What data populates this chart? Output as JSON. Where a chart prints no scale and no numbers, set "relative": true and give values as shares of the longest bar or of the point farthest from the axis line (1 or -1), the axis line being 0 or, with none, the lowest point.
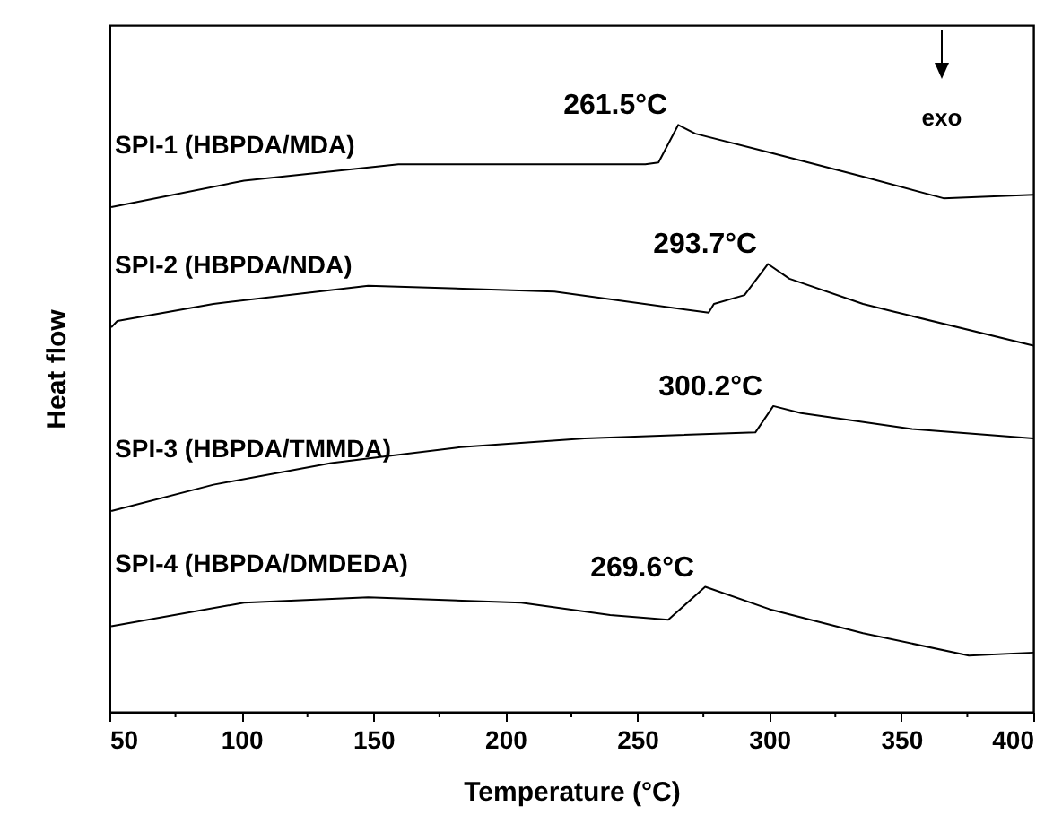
{
  "chart_data": {
    "type": "line",
    "relative": true,
    "xlabel": "Temperature (°C)",
    "ylabel": "Heat flow",
    "xlim": [
      50,
      400
    ],
    "xticks": [
      50,
      {
        "value": 75,
        "label": null
      },
      100,
      {
        "value": 125,
        "label": null
      },
      150,
      {
        "value": 175,
        "label": null
      },
      200,
      {
        "value": 225,
        "label": null
      },
      250,
      {
        "value": 275,
        "label": null
      },
      300,
      {
        "value": 325,
        "label": null
      },
      350,
      {
        "value": 375,
        "label": null
      },
      400
    ],
    "grid": false,
    "marker": "none",
    "line_style": "solid",
    "series": [
      {
        "name": "SPI-1 (HBPDA/MDA)",
        "color": "#000000",
        "x": [
          50.7,
          101,
          159.5,
          218.6,
          253,
          258,
          265.5,
          272,
          300,
          335.5,
          366,
          400
        ],
        "values": [
          0.86,
          0.905,
          0.933,
          0.933,
          0.933,
          0.936,
          1.0,
          0.985,
          0.953,
          0.912,
          0.875,
          0.881
        ]
      },
      {
        "name": "SPI-2 (HBPDA/NDA)",
        "color": "#000000",
        "x": [
          50.7,
          53,
          89.4,
          148,
          218.6,
          277,
          279,
          290.6,
          299.5,
          307.6,
          335.5,
          347,
          400
        ],
        "values": [
          0.655,
          0.666,
          0.695,
          0.726,
          0.716,
          0.68,
          0.695,
          0.71,
          0.763,
          0.738,
          0.695,
          0.682,
          0.624
        ]
      },
      {
        "name": "SPI-3 (HBPDA/TMMDA)",
        "color": "#000000",
        "x": [
          50.7,
          89.4,
          134,
          183,
          230,
          294.7,
          301.5,
          312,
          354,
          400
        ],
        "values": [
          0.342,
          0.387,
          0.424,
          0.451,
          0.466,
          0.476,
          0.521,
          0.509,
          0.482,
          0.466
        ]
      },
      {
        "name": "SPI-4 (HBPDA/DMDEDA)",
        "color": "#000000",
        "x": [
          50.7,
          101,
          148,
          206,
          239.7,
          261.7,
          275.7,
          300,
          335.5,
          375.6,
          400
        ],
        "values": [
          0.146,
          0.186,
          0.195,
          0.186,
          0.165,
          0.157,
          0.213,
          0.175,
          0.134,
          0.096,
          0.101
        ]
      }
    ],
    "annotations": [
      {
        "text": "261.5°C",
        "x": 265.5,
        "y": 1.0
      },
      {
        "text": "293.7°C",
        "x": 299.5,
        "y": 0.763
      },
      {
        "text": "300.2°C",
        "x": 301.5,
        "y": 0.521
      },
      {
        "text": "269.6°C",
        "x": 275.7,
        "y": 0.213
      },
      "exo"
    ]
  }
}
